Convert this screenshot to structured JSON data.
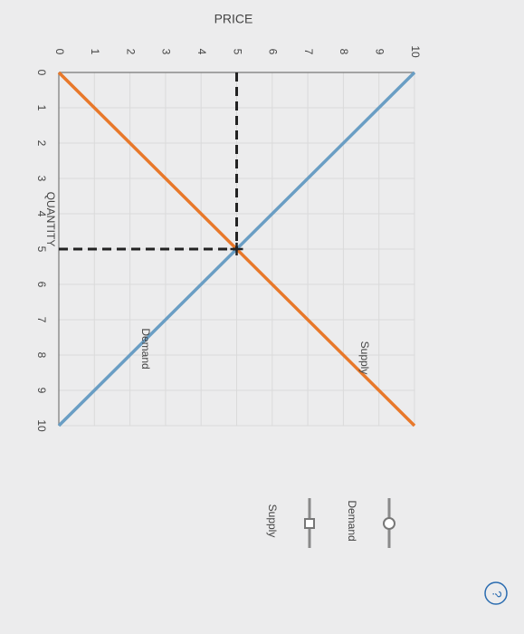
{
  "chart_data": {
    "type": "line",
    "x_label": "QUANTITY",
    "y_label": "PRICE",
    "x": [
      0,
      10
    ],
    "series": [
      {
        "name": "Demand",
        "color": "#6a9ec4",
        "values": [
          10,
          0
        ]
      },
      {
        "name": "Supply",
        "color": "#e8782a",
        "values": [
          0,
          10
        ]
      }
    ],
    "xlim": [
      0,
      10
    ],
    "ylim": [
      0,
      10
    ],
    "xticks": [
      0,
      1,
      2,
      3,
      4,
      5,
      6,
      7,
      8,
      9,
      10
    ],
    "yticks": [
      0,
      1,
      2,
      3,
      4,
      5,
      6,
      7,
      8,
      9,
      10
    ],
    "grid": true,
    "equilibrium": {
      "x": 5,
      "y": 5
    }
  },
  "help": "?"
}
